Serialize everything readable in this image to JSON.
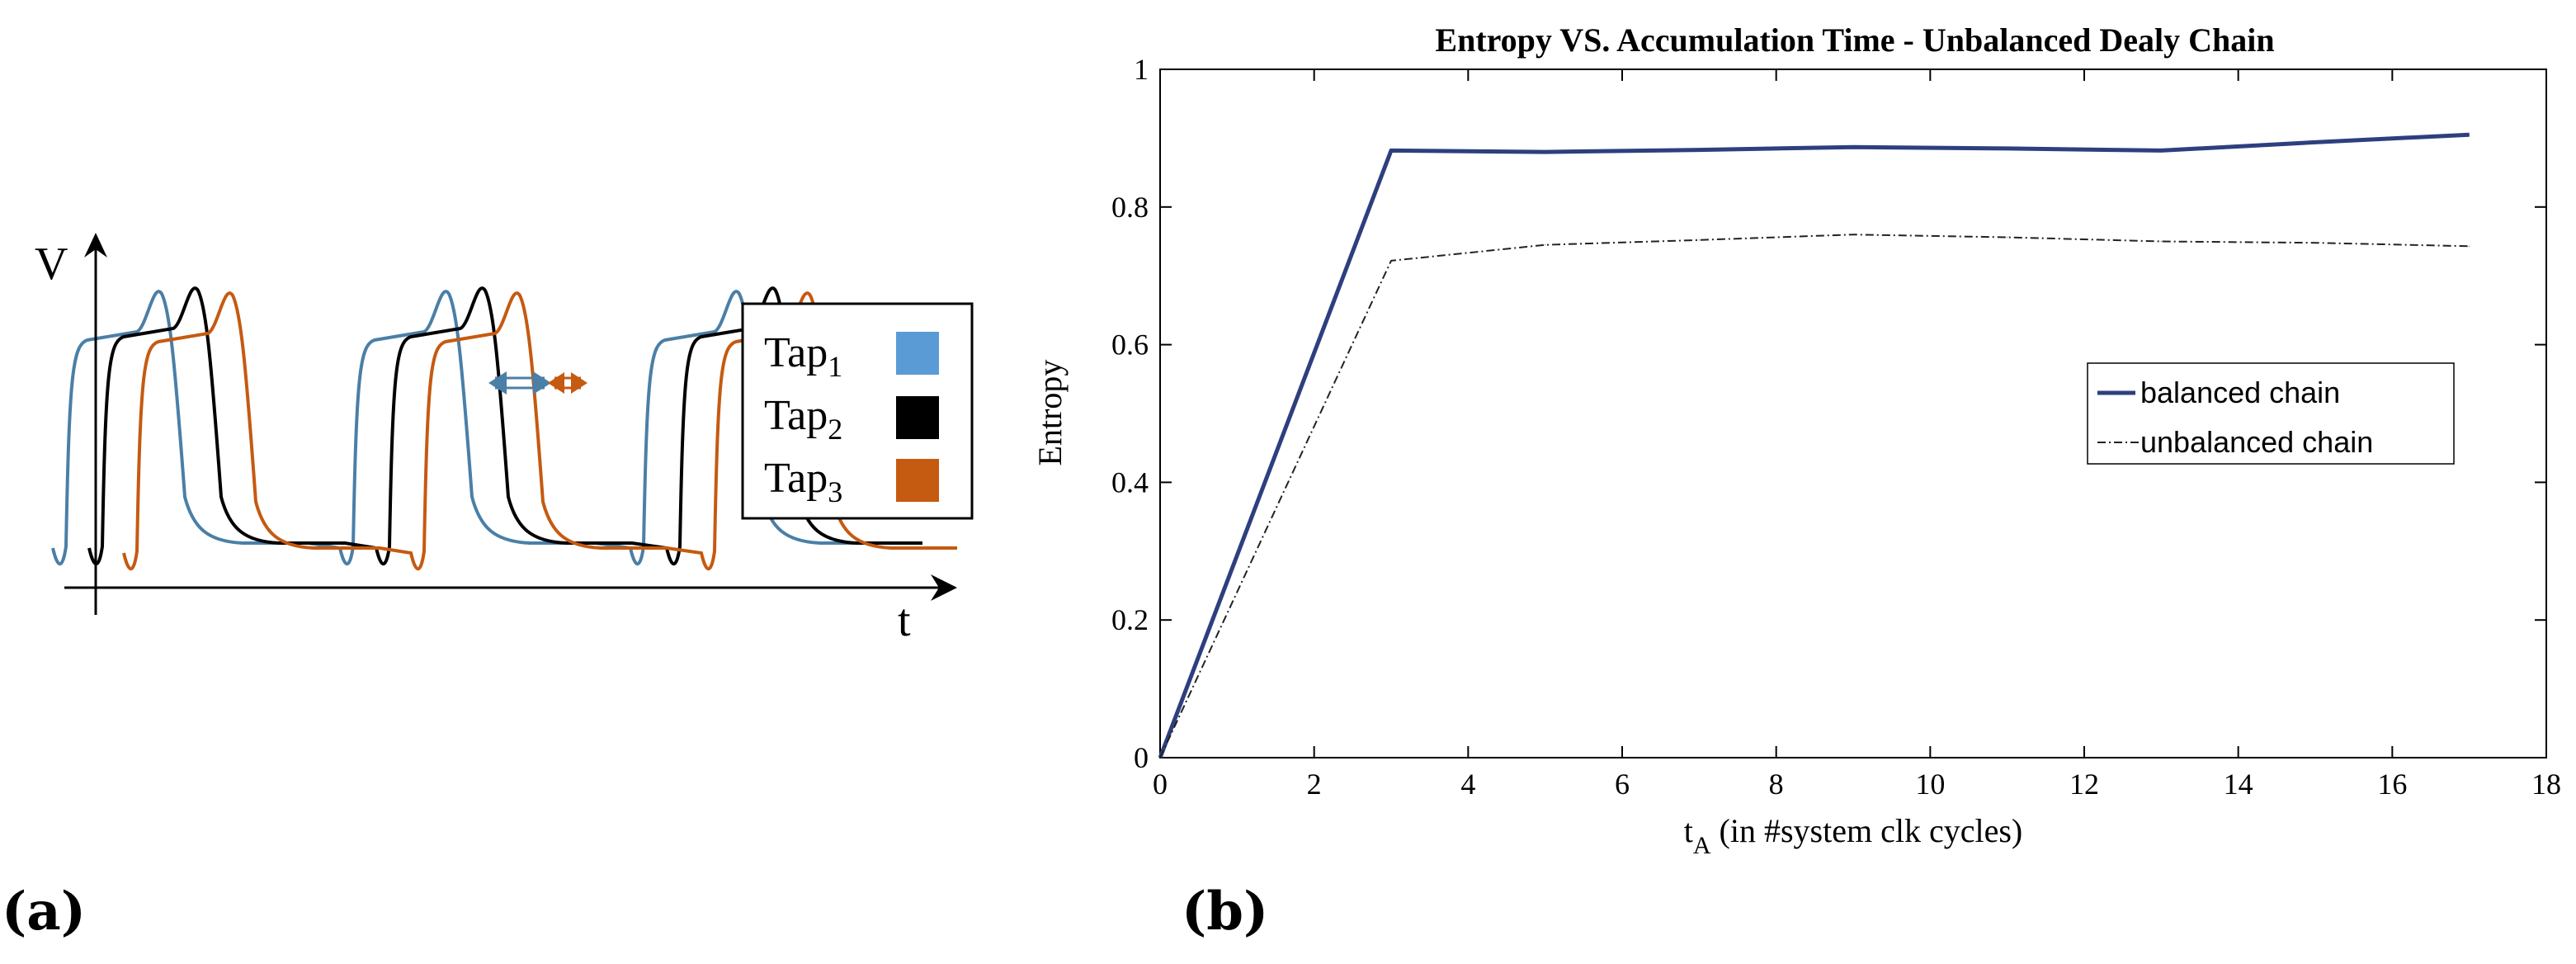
{
  "panel_a": {
    "label": "(a)",
    "y_axis_label": "V",
    "x_axis_label": "t",
    "legend": [
      {
        "name": "Tap",
        "subscript": "1",
        "color": "#5b9bd5"
      },
      {
        "name": "Tap",
        "subscript": "2",
        "color": "#000000"
      },
      {
        "name": "Tap",
        "subscript": "3",
        "color": "#c55a11"
      }
    ],
    "trace_colors": [
      "#4a7fa7",
      "#000000",
      "#c55a11"
    ]
  },
  "panel_b": {
    "label": "(b)"
  },
  "chart_data": {
    "type": "line",
    "title": "Entropy VS. Accumulation Time - Unbalanced Dealy Chain",
    "xlabel_main": "t",
    "xlabel_sub": "A",
    "xlabel_rest": " (in #system clk cycles)",
    "ylabel": "Entropy",
    "xlim": [
      0,
      18
    ],
    "ylim": [
      0,
      1
    ],
    "x_ticks": [
      "0",
      "2",
      "4",
      "6",
      "8",
      "10",
      "12",
      "14",
      "16",
      "18"
    ],
    "y_ticks": [
      "0",
      "0.2",
      "0.4",
      "0.6",
      "0.8",
      "1"
    ],
    "grid": false,
    "legend_position": "center-right",
    "series": [
      {
        "name": "balanced chain",
        "style": "solid",
        "color": "#2e3f7f",
        "x": [
          0,
          3,
          5,
          7,
          9,
          11,
          13,
          15,
          17
        ],
        "values": [
          0,
          0.882,
          0.88,
          0.883,
          0.887,
          0.885,
          0.882,
          0.894,
          0.905
        ]
      },
      {
        "name": "unbalanced chain",
        "style": "dashdot",
        "color": "#222222",
        "x": [
          0,
          3,
          5,
          7,
          9,
          11,
          13,
          15,
          17
        ],
        "values": [
          0,
          0.722,
          0.745,
          0.752,
          0.76,
          0.756,
          0.75,
          0.748,
          0.743
        ]
      }
    ]
  }
}
